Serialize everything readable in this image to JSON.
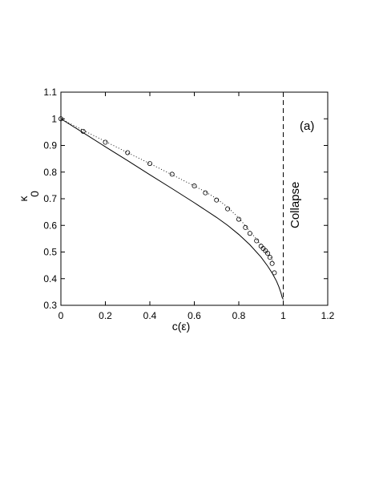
{
  "chart_data": {
    "type": "line",
    "xlabel": "c(ε)",
    "ylabel": "κ",
    "ylabel_subscript": "0",
    "xlim": [
      0,
      1.2
    ],
    "ylim": [
      0.3,
      1.1
    ],
    "x_ticks": [
      0,
      0.2,
      0.4,
      0.6,
      0.8,
      1,
      1.2
    ],
    "x_tick_labels": [
      "0",
      "0.2",
      "0.4",
      "0.6",
      "0.8",
      "1",
      "1.2"
    ],
    "y_ticks": [
      0.3,
      0.4,
      0.5,
      0.6,
      0.7,
      0.8,
      0.9,
      1,
      1.1
    ],
    "y_tick_labels": [
      "0.3",
      "0.4",
      "0.5",
      "0.6",
      "0.7",
      "0.8",
      "0.9",
      "1",
      "1.1"
    ],
    "grid": false,
    "annotations": {
      "panel_label": "(a)",
      "collapse_label": "Collapse",
      "collapse_x": 1
    },
    "series": [
      {
        "style": "solid",
        "x": [
          0,
          0.1,
          0.2,
          0.3,
          0.4,
          0.5,
          0.6,
          0.7,
          0.75,
          0.8,
          0.85,
          0.9,
          0.93,
          0.95,
          0.97,
          0.98,
          0.99,
          0.995,
          1.0
        ],
        "y": [
          1.0,
          0.948,
          0.895,
          0.843,
          0.79,
          0.738,
          0.685,
          0.63,
          0.6,
          0.566,
          0.527,
          0.481,
          0.447,
          0.421,
          0.39,
          0.37,
          0.346,
          0.33,
          0.322
        ]
      },
      {
        "style": "dotted",
        "x": [
          0,
          0.1,
          0.2,
          0.3,
          0.4,
          0.5,
          0.6,
          0.65,
          0.7,
          0.75,
          0.8,
          0.85,
          0.88,
          0.9,
          0.92,
          0.94,
          0.96
        ],
        "y": [
          1.0,
          0.957,
          0.915,
          0.873,
          0.832,
          0.79,
          0.748,
          0.726,
          0.7,
          0.668,
          0.628,
          0.578,
          0.548,
          0.525,
          0.505,
          0.485,
          0.457
        ]
      },
      {
        "style": "markers",
        "marker": "circle",
        "x": [
          0,
          0.1,
          0.2,
          0.3,
          0.4,
          0.5,
          0.6,
          0.65,
          0.7,
          0.75,
          0.8,
          0.83,
          0.85,
          0.88,
          0.9,
          0.91,
          0.92,
          0.93,
          0.94,
          0.95,
          0.96
        ],
        "y": [
          1.0,
          0.953,
          0.912,
          0.873,
          0.832,
          0.792,
          0.748,
          0.722,
          0.695,
          0.662,
          0.623,
          0.592,
          0.57,
          0.542,
          0.522,
          0.513,
          0.505,
          0.495,
          0.48,
          0.457,
          0.422
        ]
      }
    ]
  }
}
